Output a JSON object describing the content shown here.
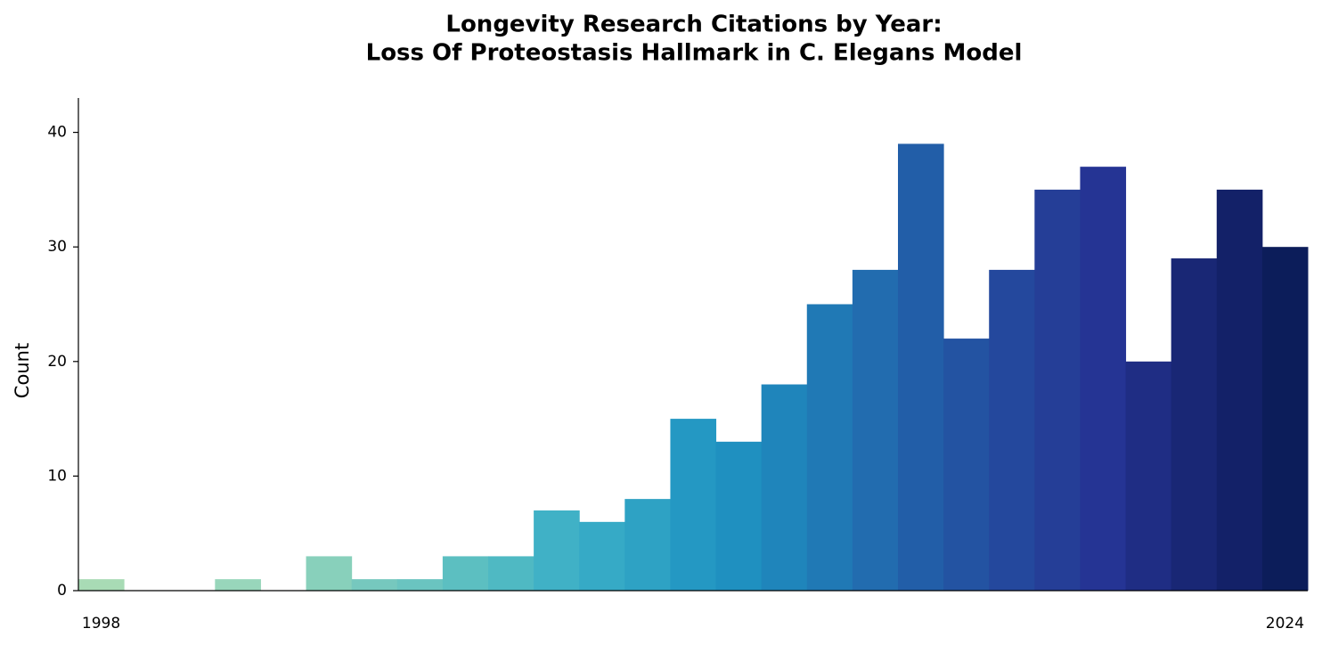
{
  "chart_data": {
    "type": "bar",
    "title": [
      "Longevity Research Citations by Year:",
      "Loss Of Proteostasis Hallmark in C. Elegans Model"
    ],
    "ylabel": "Count",
    "categories": [
      "1998",
      null,
      null,
      null,
      null,
      null,
      null,
      null,
      null,
      null,
      null,
      null,
      null,
      null,
      null,
      null,
      null,
      null,
      null,
      null,
      null,
      null,
      null,
      null,
      null,
      null,
      "2024"
    ],
    "values": [
      1,
      0,
      0,
      1,
      0,
      3,
      1,
      1,
      3,
      3,
      7,
      6,
      8,
      15,
      13,
      18,
      25,
      28,
      39,
      22,
      28,
      35,
      37,
      20,
      29,
      35,
      30
    ],
    "colors": [
      "#a8dbb5",
      "#a2d9b8",
      "#9dd7b9",
      "#98d6bb",
      "#90d3bb",
      "#88d0bb",
      "#76c8be",
      "#6ac4c0",
      "#5cbfc1",
      "#4fb9c3",
      "#40b1c6",
      "#36aac6",
      "#2ea2c4",
      "#2498c3",
      "#1f90c0",
      "#1f85bb",
      "#2079b5",
      "#226caf",
      "#225ea8",
      "#2353a2",
      "#24489d",
      "#253e97",
      "#253494",
      "#1f2d84",
      "#192775",
      "#132168",
      "#0c1d5a"
    ],
    "ylim": [
      0,
      43
    ],
    "yticks": [
      0,
      10,
      20,
      30,
      40
    ],
    "grid": false
  }
}
